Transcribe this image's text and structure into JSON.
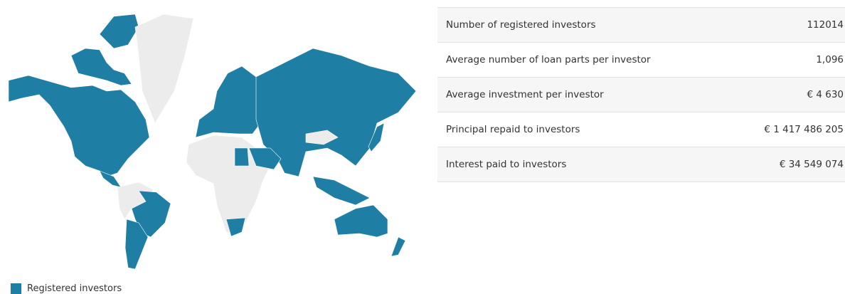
{
  "stats": {
    "rows": [
      {
        "label": "Number of registered investors",
        "value": "112014"
      },
      {
        "label": "Average number of loan parts per investor",
        "value": "1,096"
      },
      {
        "label": "Average investment per investor",
        "value": "€ 4 630"
      },
      {
        "label": "Principal repaid to investors",
        "value": "€ 1 417 486 205"
      },
      {
        "label": "Interest paid to investors",
        "value": "€ 34 549 074"
      }
    ]
  },
  "legend": {
    "label": "Registered investors"
  }
}
